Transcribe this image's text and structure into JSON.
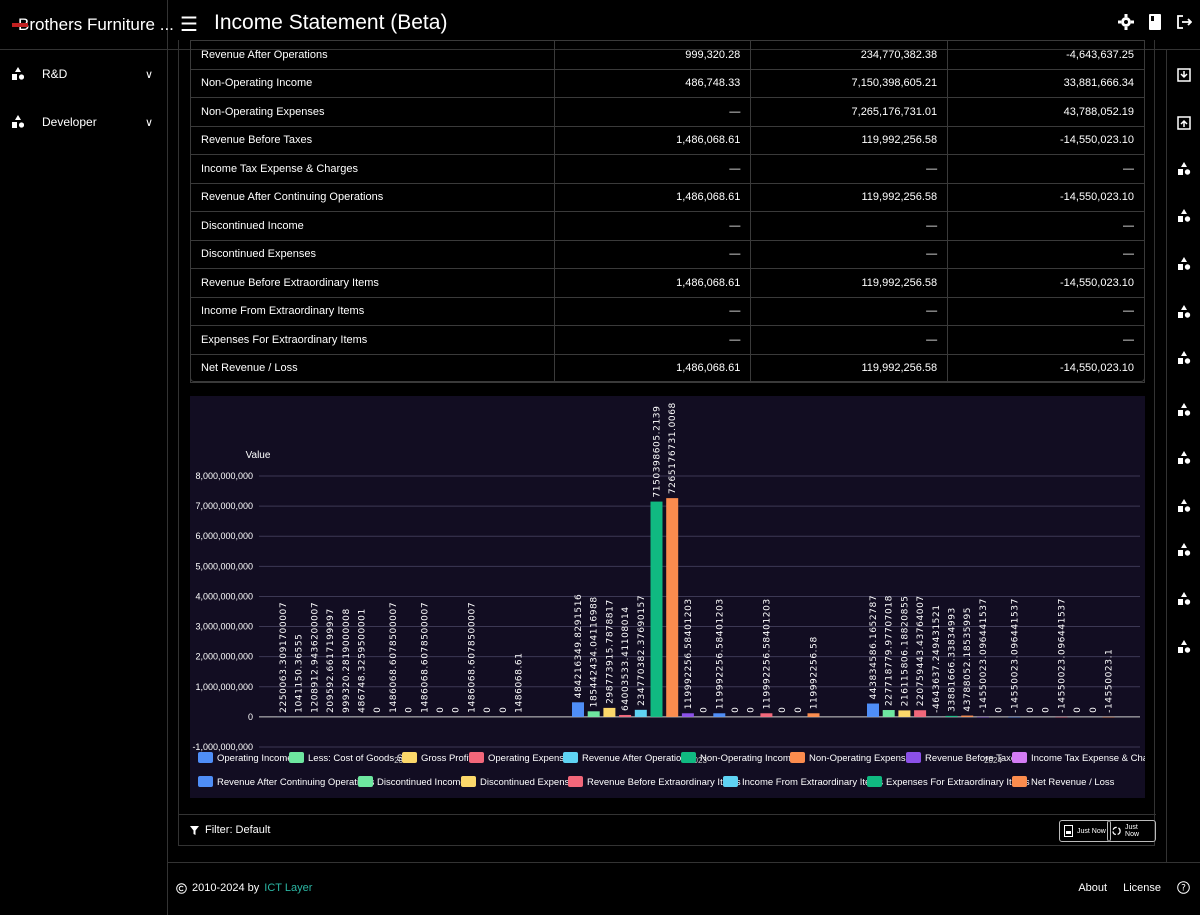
{
  "app": {
    "name": "Brothers Furniture ...",
    "page_title": "Income Statement (Beta)"
  },
  "sidebar": {
    "items": [
      {
        "label": "R&D"
      },
      {
        "label": "Developer"
      }
    ]
  },
  "table": {
    "rows": [
      {
        "label": "Revenue After Operations",
        "values": [
          "999,320.28",
          "234,770,382.38",
          "-4,643,637.25"
        ]
      },
      {
        "label": "Non-Operating Income",
        "values": [
          "486,748.33",
          "7,150,398,605.21",
          "33,881,666.34"
        ]
      },
      {
        "label": "Non-Operating Expenses",
        "values": [
          "—",
          "7,265,176,731.01",
          "43,788,052.19"
        ]
      },
      {
        "label": "Revenue Before Taxes",
        "values": [
          "1,486,068.61",
          "119,992,256.58",
          "-14,550,023.10"
        ]
      },
      {
        "label": "Income Tax Expense & Charges",
        "values": [
          "—",
          "—",
          "—"
        ]
      },
      {
        "label": "Revenue After Continuing Operations",
        "values": [
          "1,486,068.61",
          "119,992,256.58",
          "-14,550,023.10"
        ]
      },
      {
        "label": "Discontinued Income",
        "values": [
          "—",
          "—",
          "—"
        ]
      },
      {
        "label": "Discontinued Expenses",
        "values": [
          "—",
          "—",
          "—"
        ]
      },
      {
        "label": "Revenue Before Extraordinary Items",
        "values": [
          "1,486,068.61",
          "119,992,256.58",
          "-14,550,023.10"
        ]
      },
      {
        "label": "Income From Extraordinary Items",
        "values": [
          "—",
          "—",
          "—"
        ]
      },
      {
        "label": "Expenses For Extraordinary Items",
        "values": [
          "—",
          "—",
          "—"
        ]
      },
      {
        "label": "Net Revenue / Loss",
        "values": [
          "1,486,068.61",
          "119,992,256.58",
          "-14,550,023.10"
        ]
      }
    ]
  },
  "chart_data": {
    "type": "bar",
    "ylabel": "Value",
    "ylim": [
      -1000000000,
      8000000000
    ],
    "y_ticks": [
      "-1,000,000,000",
      "0",
      "1,000,000,000",
      "2,000,000,000",
      "3,000,000,000",
      "4,000,000,000",
      "5,000,000,000",
      "6,000,000,000",
      "7,000,000,000",
      "8,000,000,000"
    ],
    "categories": [
      "2022",
      "2023",
      "2024"
    ],
    "grid": true,
    "legend_position": "bottom",
    "series": [
      {
        "name": "Operating Income",
        "color": "#4f8ef7",
        "values": [
          2250063.3091700007,
          484216349.8291516,
          443834586.1652787
        ],
        "labels": [
          "2250063.3091700007",
          "484216349.8291516",
          "443834586.1652787"
        ]
      },
      {
        "name": "Less: Cost of Goods Sold",
        "color": "#6ee7a0",
        "values": [
          1041150.36555,
          185442434.04116988,
          227718779.97707018
        ],
        "labels": [
          "1041150.36555",
          "185442434.04116988",
          "227718779.97707018"
        ]
      },
      {
        "name": "Gross Profit",
        "color": "#fcd86a",
        "values": [
          1208912.9436200007,
          298773915.7878817,
          216115806.18820855
        ],
        "labels": [
          "1208912.9436200007",
          "298773915.7878817",
          "216115806.18820855"
        ]
      },
      {
        "name": "Operating Expense",
        "color": "#f2677a",
        "values": [
          209592.6617199997,
          64003533.41108014,
          220759443.43764007
        ],
        "labels": [
          "209592.6617199997",
          "64003533.41108014",
          "220759443.43764007"
        ]
      },
      {
        "name": "Revenue After Operations",
        "color": "#5fd3f3",
        "values": [
          999320.2819000008,
          234770382.37690157,
          -4643637.249431521
        ],
        "labels": [
          "999320.2819000008",
          "234770382.37690157",
          "-4643637.249431521"
        ]
      },
      {
        "name": "Non-Operating Income",
        "color": "#10b981",
        "values": [
          486748.3259500001,
          7150398605.2139,
          33881666.33834993
        ],
        "labels": [
          "486748.3259500001",
          "7150398605.2139",
          "33881666.33834993"
        ]
      },
      {
        "name": "Non-Operating Expenses",
        "color": "#fb8c4e",
        "values": [
          0,
          7265176731.0068,
          43788052.18535995
        ],
        "labels": [
          "0",
          "7265176731.0068",
          "43788052.18535995"
        ]
      },
      {
        "name": "Revenue Before Taxes",
        "color": "#8b50e8",
        "values": [
          1486068.6078500007,
          119992256.58401203,
          -14550023.096441537
        ],
        "labels": [
          "1486068.6078500007",
          "119992256.58401203",
          "-14550023.096441537"
        ]
      },
      {
        "name": "Income Tax Expense & Charges",
        "color": "#d37cf5",
        "values": [
          0,
          0,
          0
        ],
        "labels": [
          "0",
          "0",
          "0"
        ]
      },
      {
        "name": "Revenue After Continuing Operations",
        "color": "#4f8ef7",
        "values": [
          1486068.6078500007,
          119992256.58401203,
          -14550023.096441537
        ],
        "labels": [
          "1486068.6078500007",
          "119992256.58401203",
          "-14550023.096441537"
        ]
      },
      {
        "name": "Discontinued Income",
        "color": "#6ee7a0",
        "values": [
          0,
          0,
          0
        ],
        "labels": [
          "0",
          "0",
          "0"
        ]
      },
      {
        "name": "Discontinued Expenses",
        "color": "#fcd86a",
        "values": [
          0,
          0,
          0
        ],
        "labels": [
          "0",
          "0",
          "0"
        ]
      },
      {
        "name": "Revenue Before Extraordinary Items",
        "color": "#f2677a",
        "values": [
          1486068.6078500007,
          119992256.58401203,
          -14550023.096441537
        ],
        "labels": [
          "1486068.6078500007",
          "119992256.58401203",
          "-14550023.096441537"
        ]
      },
      {
        "name": "Income From Extraordinary Items",
        "color": "#5fd3f3",
        "values": [
          0,
          0,
          0
        ],
        "labels": [
          "0",
          "0",
          "0"
        ]
      },
      {
        "name": "Expenses For Extraordinary Items",
        "color": "#10b981",
        "values": [
          0,
          0,
          0
        ],
        "labels": [
          "0",
          "0",
          "0"
        ]
      },
      {
        "name": "Net Revenue / Loss",
        "color": "#fb8c4e",
        "values": [
          1486068.61,
          119992256.58,
          -14550023.1
        ],
        "labels": [
          "1486068.61",
          "119992256.58",
          "-14550023.1"
        ]
      }
    ]
  },
  "filter": {
    "label": "Filter: Default"
  },
  "buttons": {
    "export1": "Just Now",
    "export2": "Just Now"
  },
  "footer": {
    "years": "2010-2024 by",
    "company": "ICT Layer",
    "about": "About",
    "license": "License"
  },
  "icons": {
    "rail": [
      "download-icon",
      "upload-icon",
      "chart-icon",
      "chart-icon",
      "chart-icon",
      "chart-icon",
      "chart-icon",
      "chart-icon",
      "chart-icon",
      "chart-icon",
      "chart-icon",
      "chart-icon",
      "chart-icon"
    ]
  }
}
